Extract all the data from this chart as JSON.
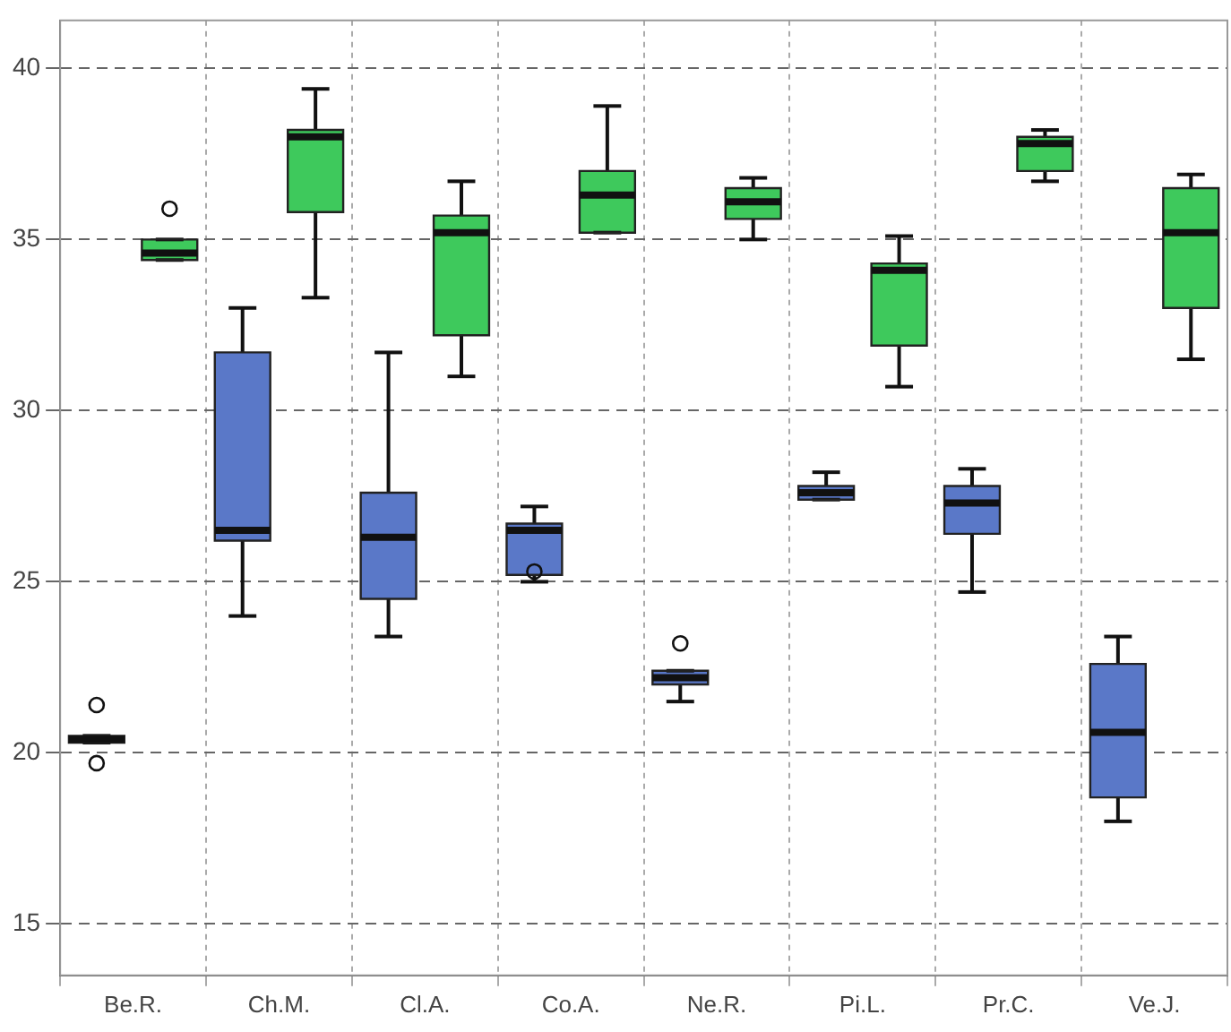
{
  "chart_data": {
    "type": "box",
    "categories": [
      "Be.R.",
      "Ch.M.",
      "Cl.A.",
      "Co.A.",
      "Ne.R.",
      "Pi.L.",
      "Pr.C.",
      "Ve.J."
    ],
    "series": [
      {
        "color": "#5a78c8",
        "boxes": [
          {
            "low": 20.3,
            "q1": 20.3,
            "median": 20.4,
            "q3": 20.5,
            "high": 20.5,
            "outliers": [
              21.4,
              19.7
            ]
          },
          {
            "low": 24.0,
            "q1": 26.2,
            "median": 26.5,
            "q3": 31.7,
            "high": 33.0
          },
          {
            "low": 23.4,
            "q1": 24.5,
            "median": 26.3,
            "q3": 27.6,
            "high": 31.7
          },
          {
            "low": 25.0,
            "q1": 25.2,
            "median": 26.5,
            "q3": 26.7,
            "high": 27.2,
            "outliers": [
              25.3
            ]
          },
          {
            "low": 21.5,
            "q1": 22.0,
            "median": 22.2,
            "q3": 22.4,
            "high": 22.4,
            "outliers": [
              23.2
            ]
          },
          {
            "low": 27.4,
            "q1": 27.4,
            "median": 27.6,
            "q3": 27.8,
            "high": 28.2
          },
          {
            "low": 24.7,
            "q1": 26.4,
            "median": 27.3,
            "q3": 27.8,
            "high": 28.3
          },
          {
            "low": 18.0,
            "q1": 18.7,
            "median": 20.6,
            "q3": 22.6,
            "high": 23.4
          }
        ]
      },
      {
        "color": "#3ec95c",
        "boxes": [
          {
            "low": 34.4,
            "q1": 34.4,
            "median": 34.6,
            "q3": 35.0,
            "high": 35.0,
            "outliers": [
              35.9
            ]
          },
          {
            "low": 33.3,
            "q1": 35.8,
            "median": 38.0,
            "q3": 38.2,
            "high": 39.4
          },
          {
            "low": 31.0,
            "q1": 32.2,
            "median": 35.2,
            "q3": 35.7,
            "high": 36.7
          },
          {
            "low": 35.2,
            "q1": 35.2,
            "median": 36.3,
            "q3": 37.0,
            "high": 38.9
          },
          {
            "low": 35.0,
            "q1": 35.6,
            "median": 36.1,
            "q3": 36.5,
            "high": 36.8
          },
          {
            "low": 30.7,
            "q1": 31.9,
            "median": 34.1,
            "q3": 34.3,
            "high": 35.1
          },
          {
            "low": 36.7,
            "q1": 37.0,
            "median": 37.8,
            "q3": 38.0,
            "high": 38.2
          },
          {
            "low": 31.5,
            "q1": 33.0,
            "median": 35.2,
            "q3": 36.5,
            "high": 36.9
          }
        ]
      }
    ],
    "ylim": [
      13.5,
      41.4
    ],
    "yticks": [
      15,
      20,
      25,
      30,
      35,
      40
    ],
    "grid": true
  }
}
